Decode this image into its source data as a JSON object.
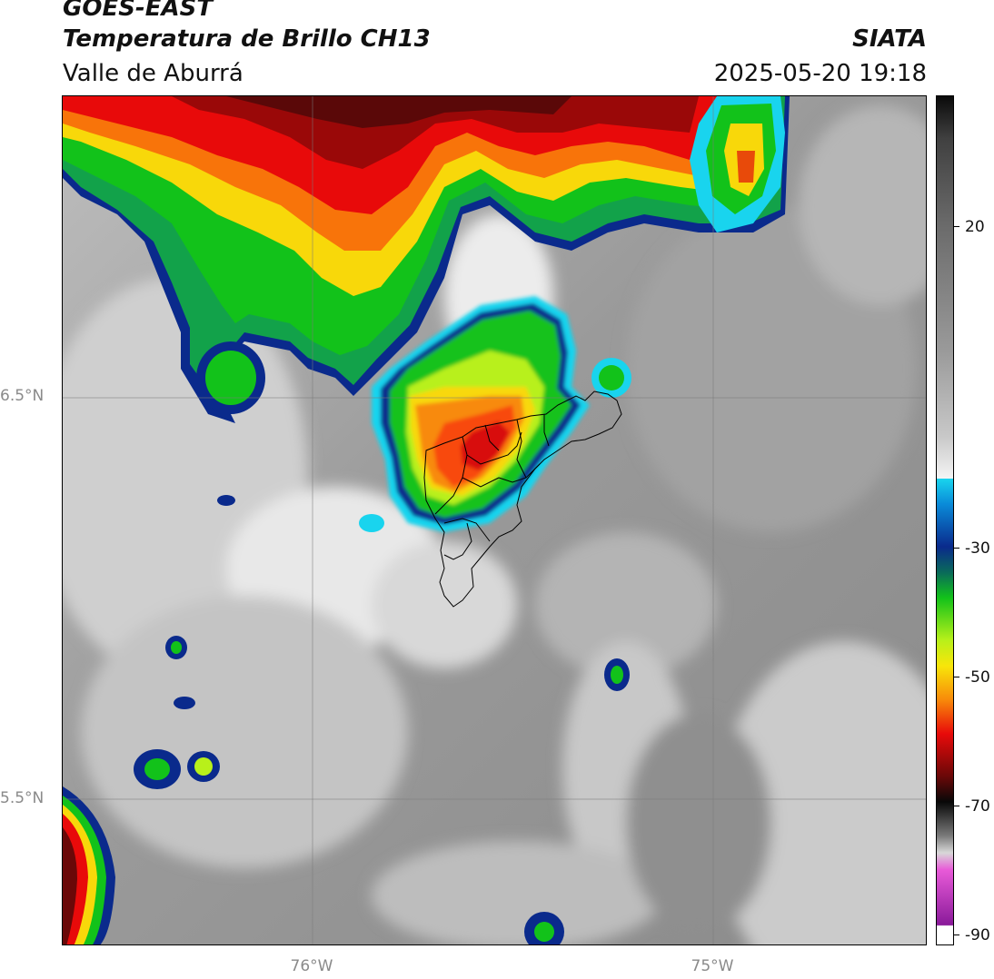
{
  "header": {
    "satellite": "GOES-EAST",
    "product": "Temperatura de Brillo CH13",
    "region": "Valle de Aburrá",
    "organization": "SIATA",
    "timestamp": "2025-05-20 19:18"
  },
  "axes": {
    "lat_ticks": [
      {
        "label": "6.5°N",
        "value": 6.5
      },
      {
        "label": "5.5°N",
        "value": 5.5
      }
    ],
    "lon_ticks": [
      {
        "label": "76°W",
        "value": -76.0
      },
      {
        "label": "75°W",
        "value": -75.0
      }
    ]
  },
  "colorbar": {
    "ticks": [
      {
        "label": "20",
        "value": 20
      },
      {
        "label": "-30",
        "value": -30
      },
      {
        "label": "-50",
        "value": -50
      },
      {
        "label": "-70",
        "value": -70
      },
      {
        "label": "-90",
        "value": -90
      }
    ],
    "colors": {
      "warm_top": "#111111",
      "gray_mid": "#8c8c8c",
      "white": "#f2f2f2",
      "cyan": "#19d4ee",
      "blue": "#0a2a8c",
      "green": "#12c21a",
      "lime": "#b8f01a",
      "yellow": "#f8e60a",
      "orange": "#f88a0a",
      "red": "#e80a0a",
      "dark_red": "#6a0808",
      "black": "#080808",
      "light_gray": "#d8d8d8",
      "pink": "#e85ad8",
      "purple": "#8a1a9a"
    }
  }
}
